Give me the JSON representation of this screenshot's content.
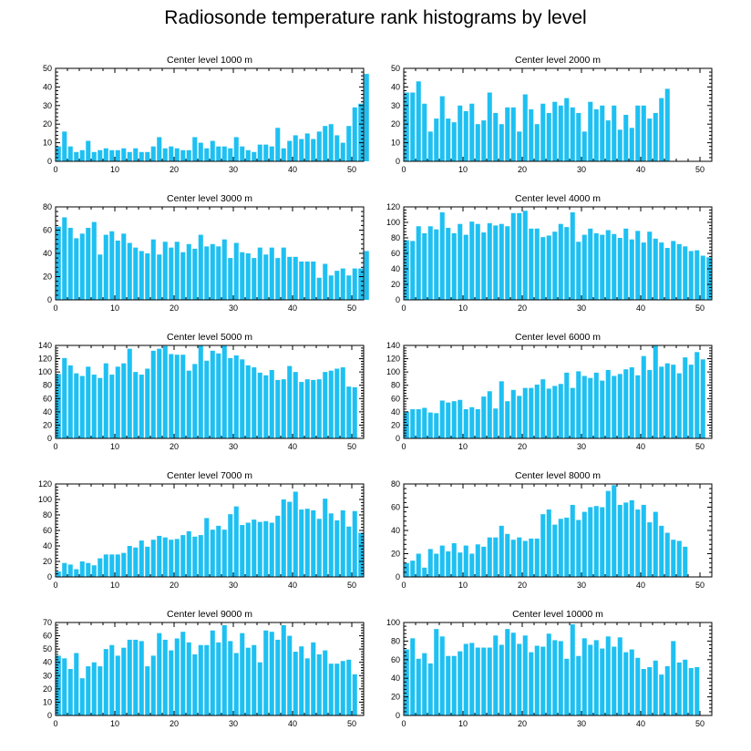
{
  "figure": {
    "title": "Radiosonde temperature rank histograms by level"
  },
  "bar_color": "#1ec0f2",
  "chart_data": [
    {
      "type": "bar",
      "title": "Center level 1000 m",
      "xlim": [
        0,
        52
      ],
      "ylim": [
        0,
        50
      ],
      "xticks": [
        0,
        10,
        20,
        30,
        40,
        50
      ],
      "yticks": [
        0,
        10,
        20,
        30,
        40,
        50
      ],
      "values": [
        8,
        16,
        8,
        5,
        6,
        11,
        5,
        6,
        7,
        6,
        6,
        7,
        5,
        7,
        5,
        5,
        8,
        13,
        7,
        8,
        7,
        6,
        6,
        13,
        10,
        7,
        11,
        8,
        8,
        7,
        13,
        8,
        6,
        5,
        9,
        9,
        8,
        18,
        7,
        11,
        14,
        12,
        15,
        12,
        16,
        19,
        20,
        14,
        10,
        19,
        29,
        31,
        47
      ]
    },
    {
      "type": "bar",
      "title": "Center level 2000 m",
      "xlim": [
        0,
        52
      ],
      "ylim": [
        0,
        50
      ],
      "xticks": [
        0,
        10,
        20,
        30,
        40,
        50
      ],
      "yticks": [
        0,
        10,
        20,
        30,
        40,
        50
      ],
      "values": [
        37,
        37,
        43,
        31,
        16,
        23,
        35,
        23,
        21,
        30,
        27,
        31,
        20,
        22,
        37,
        26,
        20,
        29,
        29,
        16,
        36,
        28,
        20,
        31,
        26,
        32,
        30,
        34,
        29,
        26,
        16,
        32,
        28,
        30,
        22,
        30,
        17,
        25,
        18,
        30,
        30,
        23,
        26,
        34,
        39
      ]
    },
    {
      "type": "bar",
      "title": "Center level 3000 m",
      "xlim": [
        0,
        52
      ],
      "ylim": [
        0,
        80
      ],
      "xticks": [
        0,
        10,
        20,
        30,
        40,
        50
      ],
      "yticks": [
        0,
        20,
        40,
        60,
        80
      ],
      "values": [
        63,
        71,
        62,
        53,
        57,
        62,
        67,
        39,
        56,
        59,
        51,
        57,
        49,
        45,
        42,
        40,
        52,
        39,
        50,
        45,
        50,
        41,
        48,
        44,
        56,
        46,
        48,
        46,
        52,
        36,
        49,
        41,
        40,
        36,
        45,
        39,
        45,
        36,
        45,
        37,
        37,
        33,
        33,
        33,
        19,
        31,
        21,
        25,
        27,
        21,
        27,
        27,
        42
      ]
    },
    {
      "type": "bar",
      "title": "Center level 4000 m",
      "xlim": [
        0,
        52
      ],
      "ylim": [
        0,
        120
      ],
      "xticks": [
        0,
        10,
        20,
        30,
        40,
        50
      ],
      "yticks": [
        0,
        20,
        40,
        60,
        80,
        100,
        120
      ],
      "values": [
        77,
        76,
        95,
        86,
        95,
        91,
        113,
        93,
        86,
        98,
        84,
        101,
        98,
        87,
        99,
        96,
        98,
        95,
        112,
        112,
        115,
        92,
        92,
        81,
        83,
        88,
        98,
        94,
        113,
        75,
        84,
        92,
        86,
        84,
        90,
        85,
        80,
        92,
        78,
        89,
        74,
        88,
        79,
        74,
        67,
        76,
        72,
        69,
        63,
        64,
        57,
        55
      ]
    },
    {
      "type": "bar",
      "title": "Center level 5000 m",
      "xlim": [
        0,
        52
      ],
      "ylim": [
        0,
        140
      ],
      "xticks": [
        0,
        10,
        20,
        30,
        40,
        50
      ],
      "yticks": [
        0,
        20,
        40,
        60,
        80,
        100,
        120,
        140
      ],
      "values": [
        97,
        121,
        110,
        98,
        94,
        108,
        96,
        91,
        113,
        96,
        108,
        113,
        135,
        100,
        96,
        105,
        132,
        135,
        139,
        127,
        126,
        126,
        102,
        112,
        140,
        117,
        132,
        128,
        140,
        121,
        125,
        119,
        110,
        107,
        99,
        95,
        103,
        88,
        89,
        109,
        100,
        85,
        89,
        88,
        89,
        100,
        102,
        105,
        107,
        78,
        77
      ]
    },
    {
      "type": "bar",
      "title": "Center level 6000 m",
      "xlim": [
        0,
        52
      ],
      "ylim": [
        0,
        140
      ],
      "xticks": [
        0,
        10,
        20,
        30,
        40,
        50
      ],
      "yticks": [
        0,
        20,
        40,
        60,
        80,
        100,
        120,
        140
      ],
      "values": [
        40,
        44,
        44,
        46,
        39,
        38,
        57,
        54,
        56,
        58,
        44,
        47,
        44,
        63,
        71,
        45,
        86,
        56,
        73,
        64,
        76,
        76,
        81,
        89,
        75,
        79,
        82,
        99,
        76,
        101,
        94,
        91,
        99,
        87,
        103,
        94,
        97,
        104,
        107,
        95,
        124,
        103,
        140,
        108,
        113,
        111,
        98,
        122,
        111,
        130,
        119
      ]
    },
    {
      "type": "bar",
      "title": "Center level 7000 m",
      "xlim": [
        0,
        52
      ],
      "ylim": [
        0,
        120
      ],
      "xticks": [
        0,
        10,
        20,
        30,
        40,
        50
      ],
      "yticks": [
        0,
        20,
        40,
        60,
        80,
        100,
        120
      ],
      "values": [
        7,
        18,
        16,
        10,
        20,
        18,
        15,
        24,
        29,
        29,
        29,
        31,
        40,
        38,
        47,
        39,
        48,
        53,
        51,
        48,
        49,
        54,
        59,
        52,
        54,
        76,
        61,
        66,
        61,
        81,
        91,
        67,
        70,
        74,
        71,
        72,
        70,
        79,
        100,
        97,
        110,
        87,
        88,
        86,
        75,
        101,
        82,
        73,
        86,
        65,
        85,
        57
      ]
    },
    {
      "type": "bar",
      "title": "Center level 8000 m",
      "xlim": [
        0,
        52
      ],
      "ylim": [
        0,
        80
      ],
      "xticks": [
        0,
        10,
        20,
        30,
        40,
        50
      ],
      "yticks": [
        0,
        20,
        40,
        60,
        80
      ],
      "values": [
        12,
        14,
        20,
        8,
        24,
        20,
        27,
        22,
        29,
        21,
        27,
        20,
        28,
        26,
        34,
        34,
        44,
        37,
        32,
        34,
        31,
        33,
        33,
        54,
        58,
        45,
        50,
        51,
        62,
        49,
        56,
        60,
        61,
        60,
        74,
        79,
        62,
        64,
        66,
        58,
        62,
        47,
        56,
        44,
        38,
        32,
        31,
        26
      ]
    },
    {
      "type": "bar",
      "title": "Center level 9000 m",
      "xlim": [
        0,
        52
      ],
      "ylim": [
        0,
        70
      ],
      "xticks": [
        0,
        10,
        20,
        30,
        40,
        50
      ],
      "yticks": [
        0,
        10,
        20,
        30,
        40,
        50,
        60,
        70
      ],
      "values": [
        45,
        43,
        35,
        47,
        28,
        37,
        40,
        37,
        50,
        53,
        45,
        51,
        57,
        57,
        56,
        37,
        45,
        62,
        57,
        49,
        58,
        63,
        55,
        46,
        53,
        53,
        64,
        55,
        68,
        56,
        47,
        62,
        51,
        53,
        40,
        64,
        63,
        57,
        68,
        60,
        48,
        52,
        43,
        55,
        46,
        49,
        39,
        39,
        41,
        42,
        31
      ]
    },
    {
      "type": "bar",
      "title": "Center level 10000 m",
      "xlim": [
        0,
        52
      ],
      "ylim": [
        0,
        100
      ],
      "xticks": [
        0,
        10,
        20,
        30,
        40,
        50
      ],
      "yticks": [
        0,
        20,
        40,
        60,
        80,
        100
      ],
      "values": [
        71,
        83,
        61,
        67,
        56,
        93,
        85,
        64,
        64,
        69,
        77,
        78,
        73,
        73,
        73,
        86,
        76,
        93,
        89,
        77,
        86,
        68,
        75,
        74,
        88,
        81,
        80,
        61,
        98,
        64,
        83,
        76,
        81,
        72,
        85,
        74,
        84,
        68,
        71,
        62,
        50,
        52,
        59,
        44,
        53,
        80,
        57,
        60,
        51,
        52
      ]
    }
  ]
}
